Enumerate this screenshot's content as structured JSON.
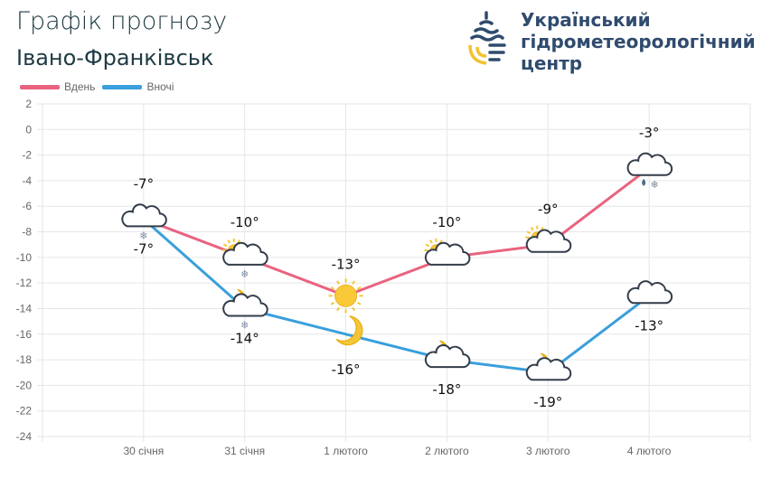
{
  "header": {
    "title": "Графік прогнозу",
    "city": "Івано-Франківськ"
  },
  "logo": {
    "line1": "Український",
    "line2": "гідрометеорологічний",
    "line3": "центр",
    "colors": {
      "dark": "#2f4b6e",
      "yellow": "#f2c230"
    }
  },
  "chart_data": {
    "type": "line",
    "categories": [
      "30 січня",
      "31 січня",
      "1 лютого",
      "2 лютого",
      "3 лютого",
      "4 лютого"
    ],
    "ylim": [
      -24,
      2
    ],
    "yticks": [
      2,
      0,
      -2,
      -4,
      -6,
      -8,
      -10,
      -12,
      -14,
      -16,
      -18,
      -20,
      -22,
      -24
    ],
    "grid": true,
    "legend": "top-left",
    "series": [
      {
        "name": "Вдень",
        "color": "#e9637f",
        "values": [
          -7,
          -10,
          -13,
          -10,
          -9,
          -3
        ],
        "labels": [
          "-7°",
          "-10°",
          "-13°",
          "-10°",
          "-9°",
          "-3°"
        ],
        "icons": [
          "cloud-snow",
          "sun-cloud-snow",
          "sun",
          "sun-cloud",
          "sun-cloud",
          "cloud-rain-snow"
        ]
      },
      {
        "name": "Вночі",
        "color": "#3a9fdc",
        "values": [
          -7,
          -14,
          -16,
          -18,
          -19,
          -13
        ],
        "labels": [
          "-7°",
          "-14°",
          "-16°",
          "-18°",
          "-19°",
          "-13°"
        ],
        "icons": [
          "",
          "moon-cloud-snow",
          "moon",
          "moon-cloud",
          "moon-cloud",
          "cloud"
        ]
      }
    ]
  }
}
